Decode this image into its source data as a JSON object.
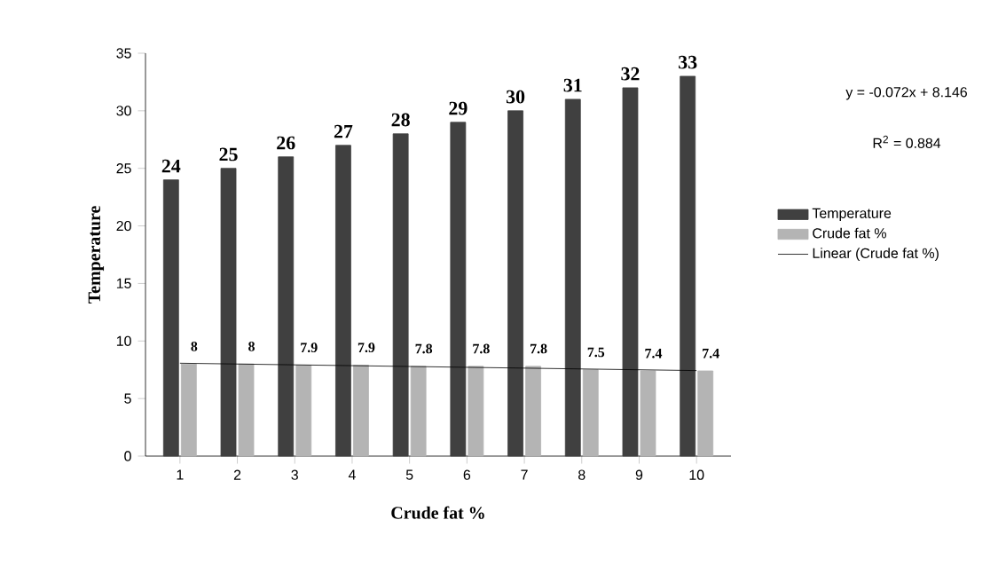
{
  "chart_data": {
    "type": "bar",
    "xlabel": "Crude fat %",
    "ylabel": "Temperature",
    "x": [
      1,
      2,
      3,
      4,
      5,
      6,
      7,
      8,
      9,
      10
    ],
    "xlim": [
      0.4,
      10.6
    ],
    "xticks": [
      1,
      2,
      3,
      4,
      5,
      6,
      7,
      8,
      9,
      10
    ],
    "ylim": [
      0,
      35
    ],
    "yticks": [
      0,
      5,
      10,
      15,
      20,
      25,
      30,
      35
    ],
    "series": [
      {
        "name": "Temperature",
        "color": "#404040",
        "values": [
          24,
          25,
          26,
          27,
          28,
          29,
          30,
          31,
          32,
          33
        ],
        "value_labels": [
          "24",
          "25",
          "26",
          "27",
          "28",
          "29",
          "30",
          "31",
          "32",
          "33"
        ]
      },
      {
        "name": "Crude fat %",
        "color": "#b4b4b4",
        "values": [
          8,
          8,
          7.9,
          7.9,
          7.8,
          7.8,
          7.8,
          7.5,
          7.4,
          7.4
        ],
        "value_labels": [
          "8",
          "8",
          "7.9",
          "7.9",
          "7.8",
          "7.8",
          "7.8",
          "7.5",
          "7.4",
          "7.4"
        ]
      },
      {
        "name": "Linear (Crude fat %)",
        "type": "line",
        "color": "#000000",
        "x": [
          1,
          10
        ],
        "values": [
          8.07,
          7.43
        ]
      }
    ],
    "annotations": [
      "y = -0.072x + 8.146",
      "R$^{2}$ = 0.884"
    ],
    "legend": "right",
    "marker": "none",
    "line_style": "solid"
  }
}
